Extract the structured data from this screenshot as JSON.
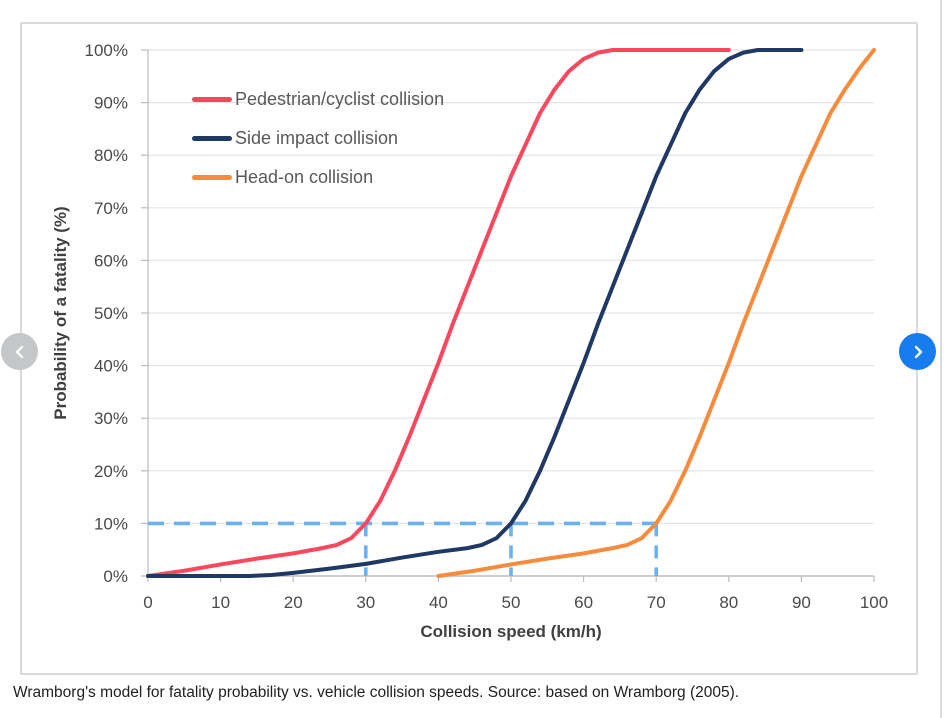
{
  "figure": {
    "caption": "Wramborg's model for fatality probability vs. vehicle collision speeds. Source: based on Wramborg (2005)."
  },
  "carousel": {
    "prev_label": "Previous",
    "next_label": "Next",
    "prev_color": "#c4c6c8",
    "next_color": "#177dee"
  },
  "chart_data": {
    "type": "line",
    "title": "",
    "xlabel": "Collision speed (km/h)",
    "ylabel": "Probability of a fatality (%)",
    "xlim": [
      0,
      100
    ],
    "ylim": [
      0,
      100
    ],
    "x_ticks": [
      0,
      10,
      20,
      30,
      40,
      50,
      60,
      70,
      80,
      90,
      100
    ],
    "y_ticks": [
      0,
      10,
      20,
      30,
      40,
      50,
      60,
      70,
      80,
      90,
      100
    ],
    "y_tick_suffix": "%",
    "grid": "horizontal",
    "legend_position": "inside-top-left",
    "series": [
      {
        "name": "Pedestrian/cyclist collision",
        "color": "#f9485e",
        "points": [
          [
            0,
            0
          ],
          [
            5,
            1
          ],
          [
            10,
            2.2
          ],
          [
            15,
            3.3
          ],
          [
            20,
            4.3
          ],
          [
            24,
            5.3
          ],
          [
            26,
            5.9
          ],
          [
            28,
            7.2
          ],
          [
            30,
            10
          ],
          [
            32,
            14.3
          ],
          [
            34,
            20
          ],
          [
            36,
            26.5
          ],
          [
            38,
            33.5
          ],
          [
            40,
            40.5
          ],
          [
            42,
            48
          ],
          [
            44,
            55
          ],
          [
            46,
            62
          ],
          [
            48,
            69
          ],
          [
            50,
            76
          ],
          [
            52,
            82
          ],
          [
            54,
            88
          ],
          [
            56,
            92.5
          ],
          [
            58,
            96
          ],
          [
            60,
            98.3
          ],
          [
            62,
            99.5
          ],
          [
            64,
            100
          ],
          [
            72,
            100
          ],
          [
            80,
            100
          ]
        ]
      },
      {
        "name": "Side impact collision",
        "color": "#1f3864",
        "points": [
          [
            0,
            0
          ],
          [
            8,
            0
          ],
          [
            14,
            0
          ],
          [
            17,
            0.2
          ],
          [
            20,
            0.6
          ],
          [
            25,
            1.4
          ],
          [
            30,
            2.3
          ],
          [
            35,
            3.5
          ],
          [
            40,
            4.6
          ],
          [
            44,
            5.3
          ],
          [
            46,
            5.9
          ],
          [
            48,
            7.2
          ],
          [
            50,
            10
          ],
          [
            52,
            14.3
          ],
          [
            54,
            20
          ],
          [
            56,
            26.5
          ],
          [
            58,
            33.5
          ],
          [
            60,
            40.5
          ],
          [
            62,
            48
          ],
          [
            64,
            55
          ],
          [
            66,
            62
          ],
          [
            68,
            69
          ],
          [
            70,
            76
          ],
          [
            72,
            82
          ],
          [
            74,
            88
          ],
          [
            76,
            92.5
          ],
          [
            78,
            96
          ],
          [
            80,
            98.3
          ],
          [
            82,
            99.5
          ],
          [
            84,
            100
          ],
          [
            90,
            100
          ]
        ]
      },
      {
        "name": "Head-on collision",
        "color": "#f68b3c",
        "points": [
          [
            40,
            0
          ],
          [
            45,
            1
          ],
          [
            50,
            2.2
          ],
          [
            55,
            3.3
          ],
          [
            60,
            4.3
          ],
          [
            64,
            5.3
          ],
          [
            66,
            5.9
          ],
          [
            68,
            7.2
          ],
          [
            70,
            10
          ],
          [
            72,
            14.3
          ],
          [
            74,
            20
          ],
          [
            76,
            26.5
          ],
          [
            78,
            33.5
          ],
          [
            80,
            40.5
          ],
          [
            82,
            48
          ],
          [
            84,
            55
          ],
          [
            86,
            62
          ],
          [
            88,
            69
          ],
          [
            90,
            76
          ],
          [
            92,
            82
          ],
          [
            94,
            88
          ],
          [
            96,
            92.5
          ],
          [
            98,
            96.5
          ],
          [
            100,
            100
          ]
        ]
      }
    ],
    "annotations": {
      "dash_color": "#6cb2f2",
      "h_guide": {
        "y": 10,
        "x_from": 0,
        "x_to": 71.5
      },
      "v_guides": [
        30,
        50,
        70
      ]
    },
    "axis_colors": {
      "grid": "#e3e4e6",
      "axis": "#b9bdbf",
      "tick_text": "#4a4a4a",
      "title_text": "#404040",
      "legend_text": "#595959"
    }
  }
}
